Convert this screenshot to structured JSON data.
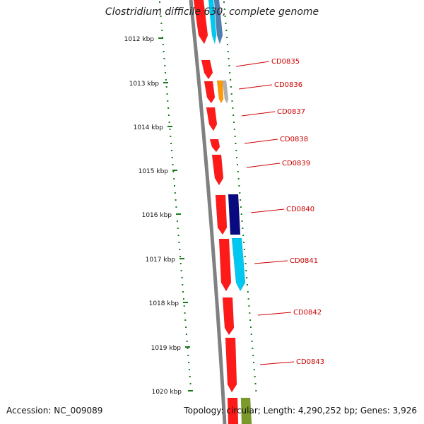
{
  "title": "Clostridium difficile 630, complete genome",
  "footer": {
    "accession": "Accession: NC_009089",
    "summary": "Topology: circular; Length: 4,290,252 bp; Genes: 3,926"
  },
  "scale": {
    "unit": "kbp",
    "ticks": [
      "1012 kbp",
      "1013 kbp",
      "1014 kbp",
      "1015 kbp",
      "1016 kbp",
      "1017 kbp",
      "1018 kbp",
      "1019 kbp",
      "1020 kbp"
    ]
  },
  "gene_labels": [
    "CD0835",
    "CD0836",
    "CD0837",
    "CD0838",
    "CD0839",
    "CD0840",
    "CD0841",
    "CD0842",
    "CD0843"
  ],
  "colors": {
    "backbone": "#808080",
    "tick": "#1a7a1a",
    "label": "#cc0000",
    "leader": "#cc0000",
    "gene_red": "#ff1a1a",
    "gene_cyan": "#00c8f0",
    "gene_navy": "#0a0a80",
    "gene_orange": "#ff9900",
    "gene_gray": "#b0b0b0",
    "gene_steel": "#4f7fb0",
    "gene_olive": "#7a9a2a"
  }
}
